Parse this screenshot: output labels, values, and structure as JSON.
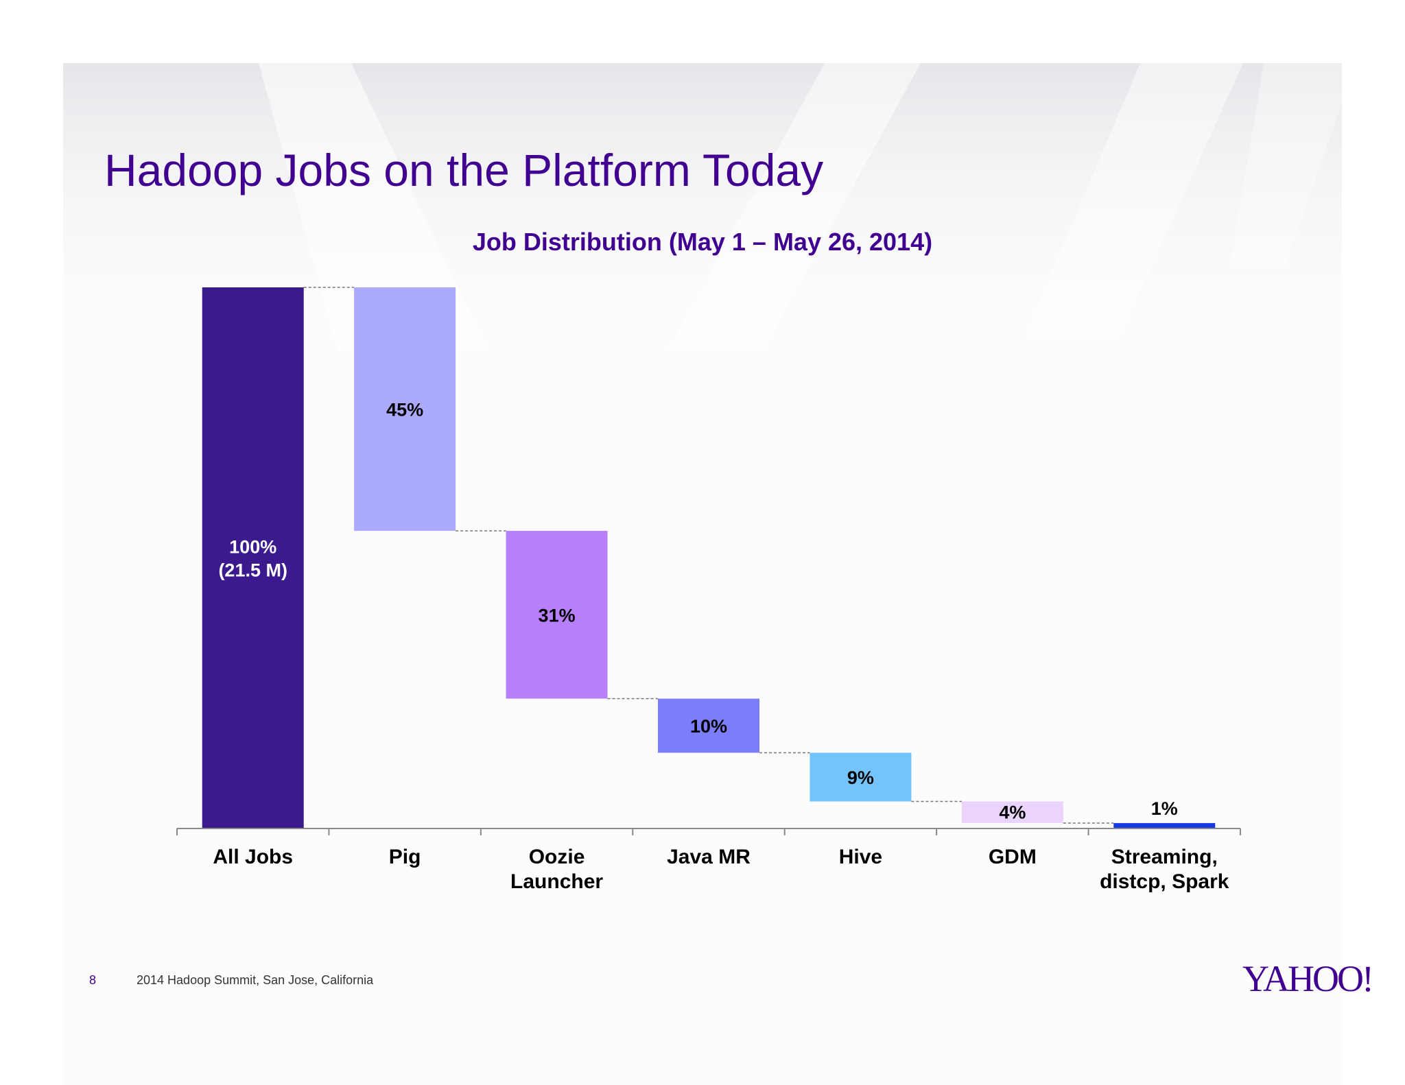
{
  "slide": {
    "title": "Hadoop Jobs on the Platform Today",
    "page_number": "8",
    "footer": "2014 Hadoop Summit, San Jose, California",
    "logo_text": "YAHOO!"
  },
  "colors": {
    "title": "#400090",
    "text": "#000000",
    "axis": "#888888"
  },
  "chart_data": {
    "type": "bar",
    "subtype": "waterfall",
    "title": "Job Distribution (May 1 – May 26, 2014)",
    "xlabel": "",
    "ylabel": "",
    "ylim": [
      0,
      100
    ],
    "grid": false,
    "legend": "none",
    "categories": [
      [
        "All Jobs"
      ],
      [
        "Pig"
      ],
      [
        "Oozie",
        "Launcher"
      ],
      [
        "Java MR"
      ],
      [
        "Hive"
      ],
      [
        "GDM"
      ],
      [
        "Streaming,",
        "distcp, Spark"
      ]
    ],
    "values": [
      100,
      45,
      31,
      10,
      9,
      4,
      1
    ],
    "data_labels": [
      [
        "100%",
        "(21.5 M)"
      ],
      [
        "45%"
      ],
      [
        "31%"
      ],
      [
        "10%"
      ],
      [
        "9%"
      ],
      [
        "4%"
      ],
      [
        "1%"
      ]
    ],
    "bar_colors": [
      "#3a1a8c",
      "#abaafc",
      "#b87ffb",
      "#7b7dfb",
      "#74c3fb",
      "#ead4fb",
      "#1538e4"
    ],
    "label_colors": [
      "#ffffff",
      "#000000",
      "#000000",
      "#000000",
      "#000000",
      "#000000",
      "#000000"
    ]
  }
}
